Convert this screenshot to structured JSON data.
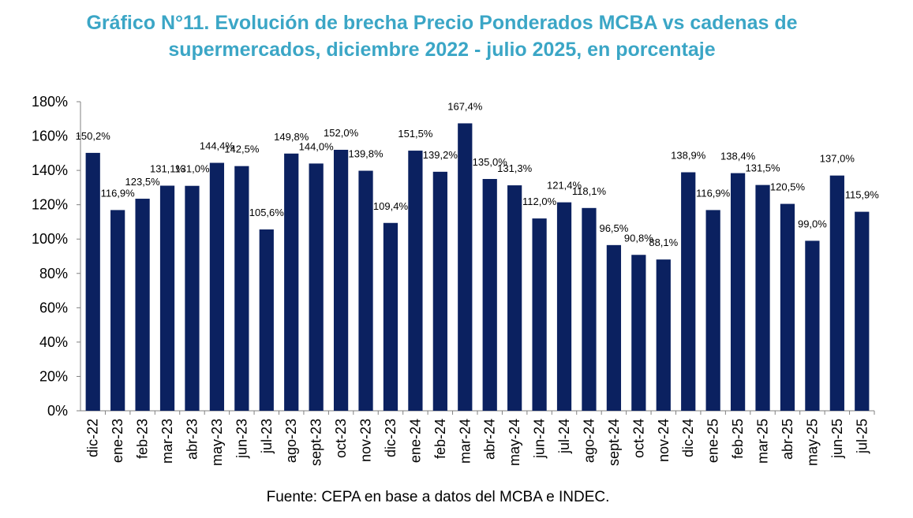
{
  "header": {
    "title_line1": "Gráfico N°11.  Evolución de brecha Precio Ponderados MCBA vs cadenas de",
    "title_line2": "supermercados, diciembre 2022 - julio 2025, en porcentaje"
  },
  "footer": {
    "source": "Fuente: CEPA en base a datos del MCBA e INDEC."
  },
  "colors": {
    "bar": "#0b2160",
    "title": "#3ba6c6",
    "axis": "#808080"
  },
  "chart_data": {
    "type": "bar",
    "title": "Gráfico N°11.  Evolución de brecha Precio Ponderados MCBA vs cadenas de supermercados, diciembre 2022 - julio 2025, en porcentaje",
    "xlabel": "",
    "ylabel": "",
    "ylim": [
      0,
      180
    ],
    "yticks": [
      0,
      20,
      40,
      60,
      80,
      100,
      120,
      140,
      160,
      180
    ],
    "ytick_labels": [
      "0%",
      "20%",
      "40%",
      "60%",
      "80%",
      "100%",
      "120%",
      "140%",
      "160%",
      "180%"
    ],
    "grid": false,
    "legend": "none",
    "categories": [
      "dic-22",
      "ene-23",
      "feb-23",
      "mar-23",
      "abr-23",
      "may-23",
      "jun-23",
      "jul-23",
      "ago-23",
      "sept-23",
      "oct-23",
      "nov-23",
      "dic-23",
      "ene-24",
      "feb-24",
      "mar-24",
      "abr-24",
      "may-24",
      "jun-24",
      "jul-24",
      "ago-24",
      "sept-24",
      "oct-24",
      "nov-24",
      "dic-24",
      "ene-25",
      "feb-25",
      "mar-25",
      "abr-25",
      "may-25",
      "jun-25",
      "jul-25"
    ],
    "values": [
      150.2,
      116.9,
      123.5,
      131.1,
      131.0,
      144.4,
      142.5,
      105.6,
      149.8,
      144.0,
      152.0,
      139.8,
      109.4,
      151.5,
      139.2,
      167.4,
      135.0,
      131.3,
      112.0,
      121.4,
      118.1,
      96.5,
      90.8,
      88.1,
      138.9,
      116.9,
      138.4,
      131.5,
      120.5,
      99.0,
      137.0,
      115.9
    ],
    "data_labels": [
      "150,2%",
      "116,9%",
      "123,5%",
      "131,1%",
      "131,0%",
      "144,4%",
      "142,5%",
      "105,6%",
      "149,8%",
      "144,0%",
      "152,0%",
      "139,8%",
      "109,4%",
      "151,5%",
      "139,2%",
      "167,4%",
      "135,0%",
      "131,3%",
      "112,0%",
      "121,4%",
      "118,1%",
      "96,5%",
      "90,8%",
      "88,1%",
      "138,9%",
      "116,9%",
      "138,4%",
      "131,5%",
      "120,5%",
      "99,0%",
      "137,0%",
      "115,9%"
    ]
  }
}
